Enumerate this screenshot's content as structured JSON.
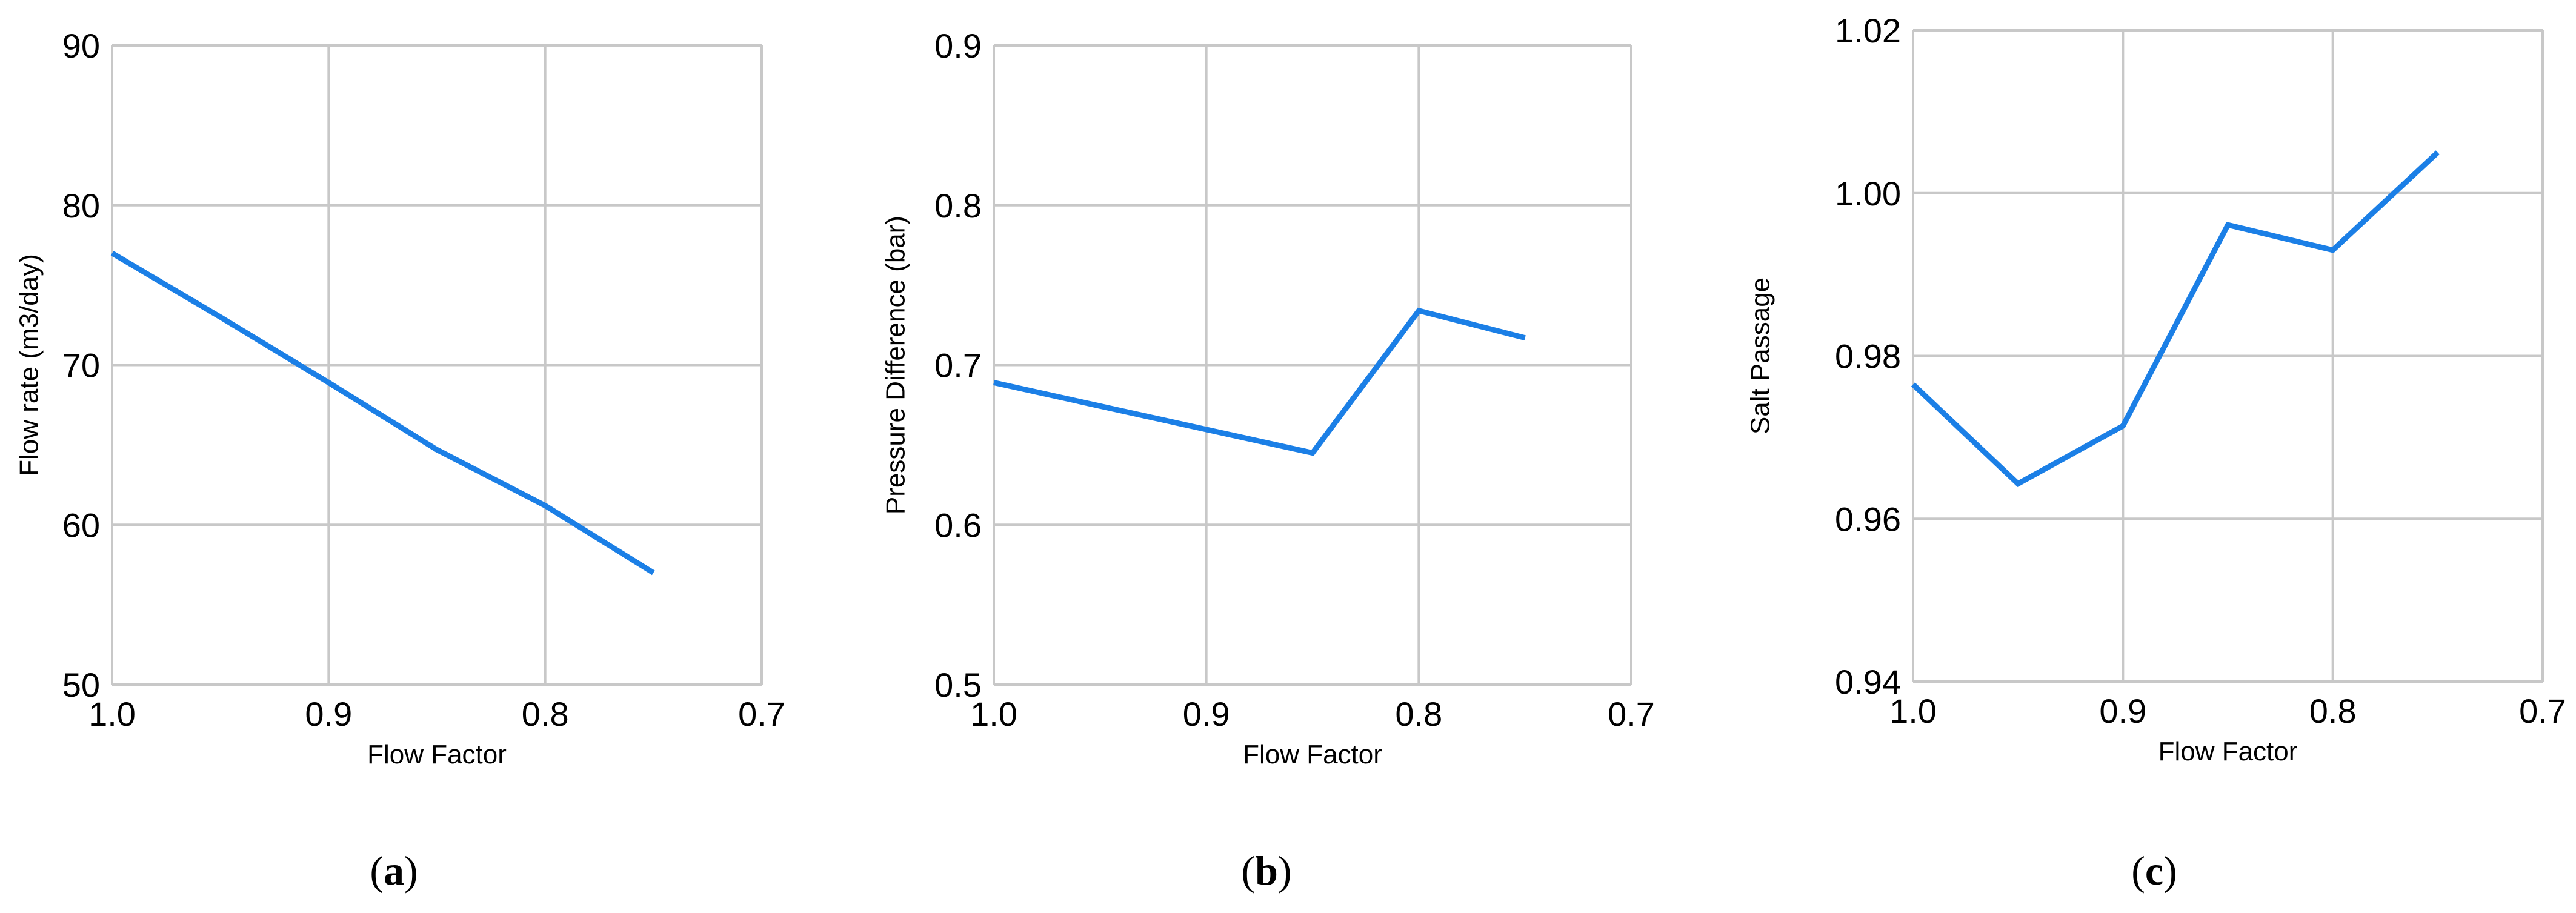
{
  "chart_data": [
    {
      "type": "line",
      "panel": "a",
      "caption": "a",
      "title": "",
      "xlabel": "Flow Factor",
      "ylabel": "Flow rate (m3/day)",
      "x_ticks": [
        "1.0",
        "0.9",
        "0.8",
        "0.7"
      ],
      "y_ticks": [
        "50",
        "60",
        "70",
        "80",
        "90"
      ],
      "xlim": [
        1.0,
        0.7
      ],
      "ylim": [
        50,
        90
      ],
      "x_reversed": true,
      "grid": true,
      "series": [
        {
          "color": "#1b7fe6",
          "x": [
            1.0,
            0.95,
            0.9,
            0.85,
            0.8,
            0.75
          ],
          "y": [
            77.0,
            73.0,
            68.9,
            64.7,
            61.2,
            57.0
          ]
        }
      ]
    },
    {
      "type": "line",
      "panel": "b",
      "caption": "b",
      "title": "",
      "xlabel": "Flow Factor",
      "ylabel": "Pressure Difference (bar)",
      "x_ticks": [
        "1.0",
        "0.9",
        "0.8",
        "0.7"
      ],
      "y_ticks": [
        "0.5",
        "0.6",
        "0.7",
        "0.8",
        "0.9"
      ],
      "xlim": [
        1.0,
        0.7
      ],
      "ylim": [
        0.5,
        0.9
      ],
      "x_reversed": true,
      "grid": true,
      "series": [
        {
          "color": "#1b7fe6",
          "x": [
            1.0,
            0.85,
            0.8,
            0.75
          ],
          "y": [
            0.689,
            0.645,
            0.734,
            0.717
          ]
        }
      ]
    },
    {
      "type": "line",
      "panel": "c",
      "caption": "c",
      "title": "",
      "xlabel": "Flow Factor",
      "ylabel": "Salt Passage",
      "x_ticks": [
        "1.0",
        "0.9",
        "0.8",
        "0.7"
      ],
      "y_ticks": [
        "0.94",
        "0.96",
        "0.98",
        "1.00",
        "1.02"
      ],
      "xlim": [
        1.0,
        0.7
      ],
      "ylim": [
        0.94,
        1.02
      ],
      "x_reversed": true,
      "grid": true,
      "series": [
        {
          "color": "#1b7fe6",
          "x": [
            1.0,
            0.95,
            0.9,
            0.85,
            0.8,
            0.75
          ],
          "y": [
            0.9765,
            0.9643,
            0.9714,
            0.9961,
            0.993,
            1.005
          ]
        }
      ]
    }
  ]
}
